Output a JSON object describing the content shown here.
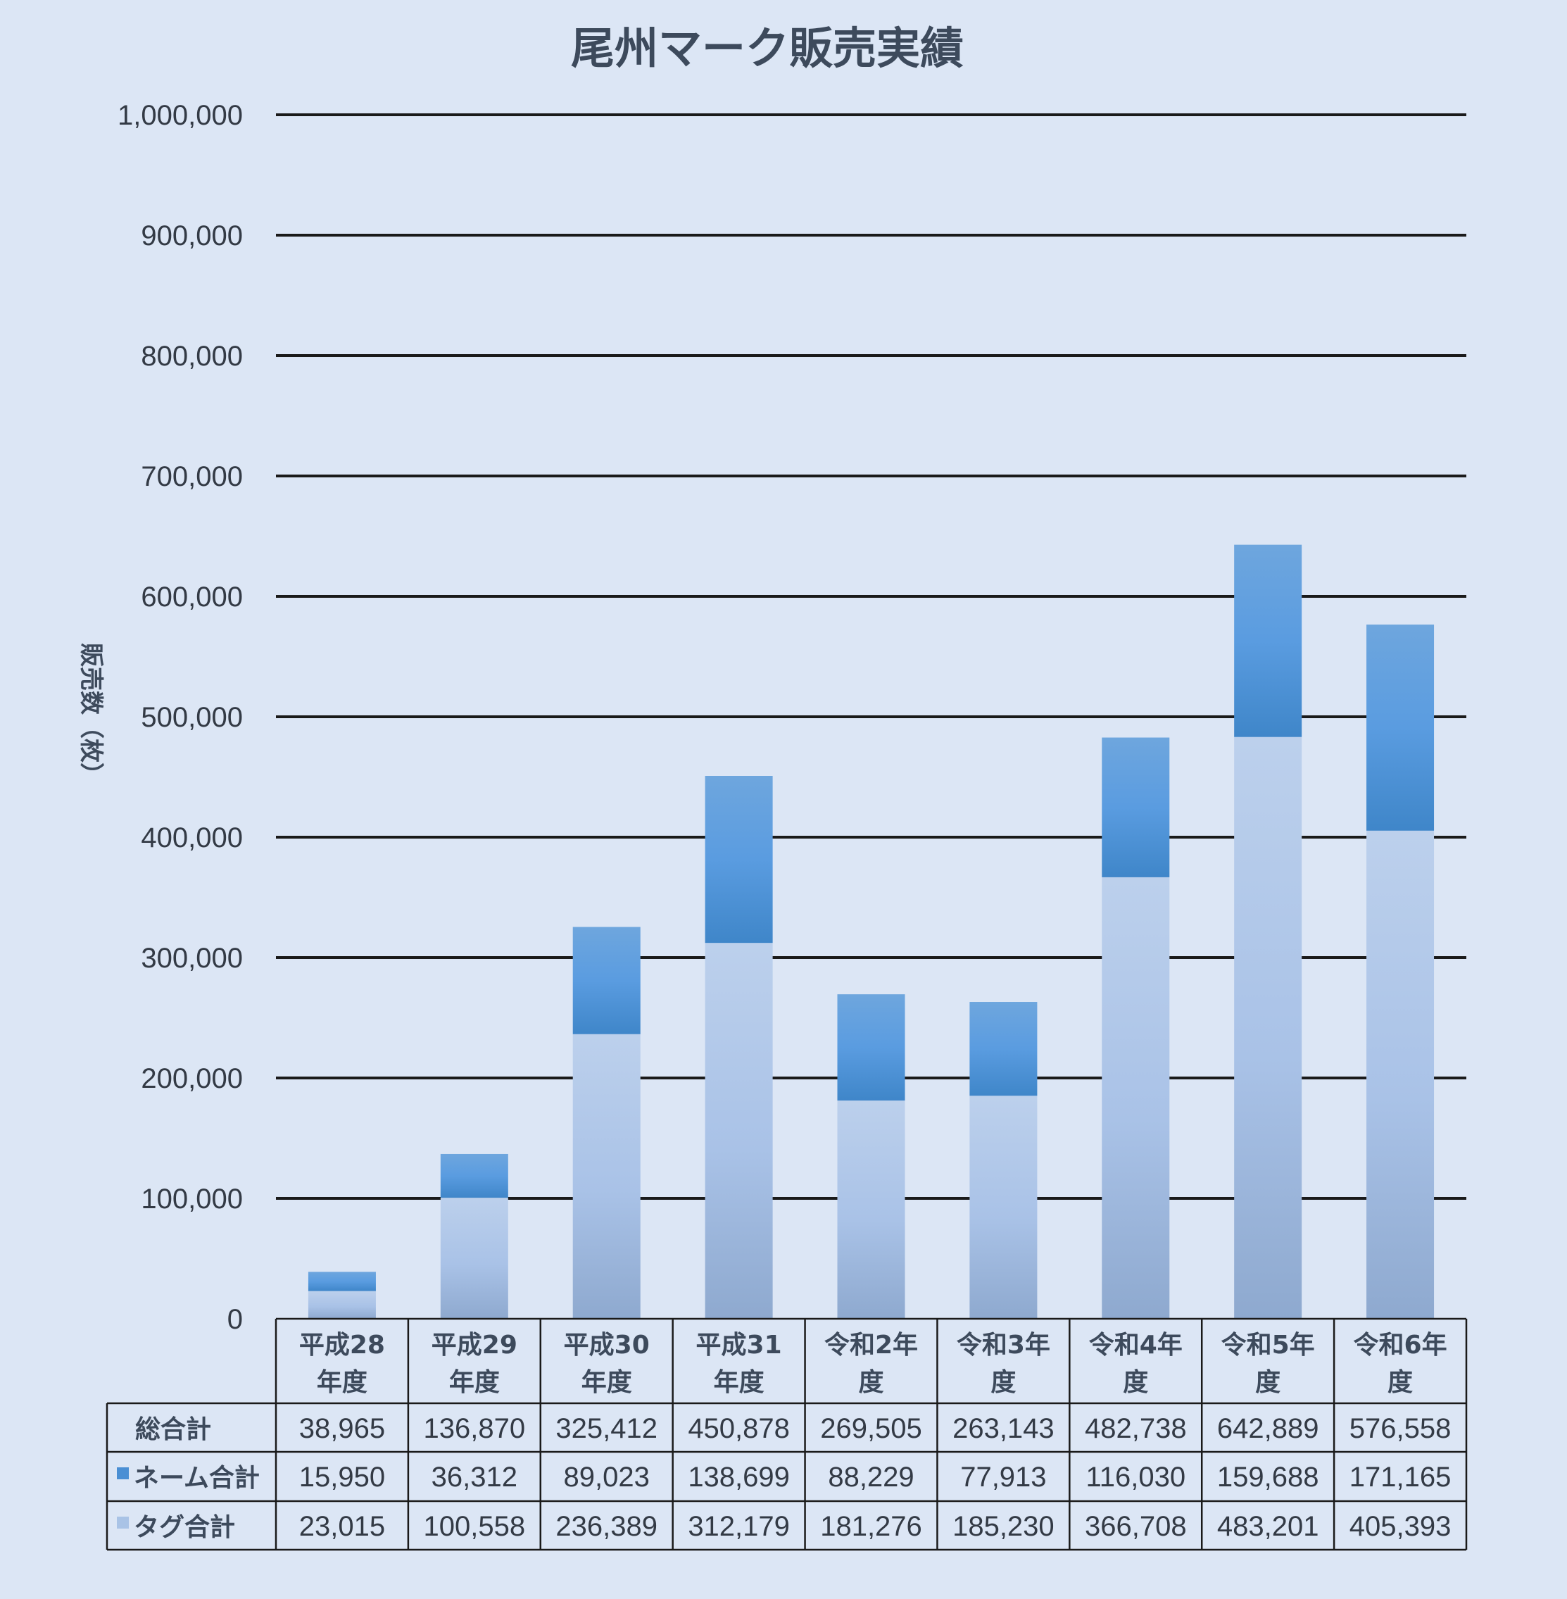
{
  "chart_data": {
    "type": "bar",
    "stacked": true,
    "title": "尾州マーク販売実績",
    "ylabel": "販売数（枚）",
    "ylim": [
      0,
      1000000
    ],
    "yticks": [
      "0",
      "100,000",
      "200,000",
      "300,000",
      "400,000",
      "500,000",
      "600,000",
      "700,000",
      "800,000",
      "900,000",
      "1,000,000"
    ],
    "grid": true,
    "categories": [
      [
        "平成28",
        "年度"
      ],
      [
        "平成29",
        "年度"
      ],
      [
        "平成30",
        "年度"
      ],
      [
        "平成31",
        "年度"
      ],
      [
        "令和2年",
        "度"
      ],
      [
        "令和3年",
        "度"
      ],
      [
        "令和4年",
        "度"
      ],
      [
        "令和5年",
        "度"
      ],
      [
        "令和6年",
        "度"
      ]
    ],
    "series": [
      {
        "name": "タグ合計",
        "color": "#a9c3e6",
        "values": [
          23015,
          100558,
          236389,
          312179,
          181276,
          185230,
          366708,
          483201,
          405393
        ]
      },
      {
        "name": "ネーム合計",
        "color": "#4a8fd4",
        "values": [
          15950,
          36312,
          89023,
          138699,
          88229,
          77913,
          116030,
          159688,
          171165
        ]
      }
    ],
    "table": {
      "total_label": "総合計",
      "rows_order": [
        "総合計",
        "ネーム合計",
        "タグ合計"
      ],
      "totals": [
        "38,965",
        "136,870",
        "325,412",
        "450,878",
        "269,505",
        "263,143",
        "482,738",
        "642,889",
        "576,558"
      ],
      "name_row": [
        "15,950",
        "36,312",
        "89,023",
        "138,699",
        "88,229",
        "77,913",
        "116,030",
        "159,688",
        "171,165"
      ],
      "tag_row": [
        "23,015",
        "100,558",
        "236,389",
        "312,179",
        "181,276",
        "185,230",
        "366,708",
        "483,201",
        "405,393"
      ]
    }
  }
}
